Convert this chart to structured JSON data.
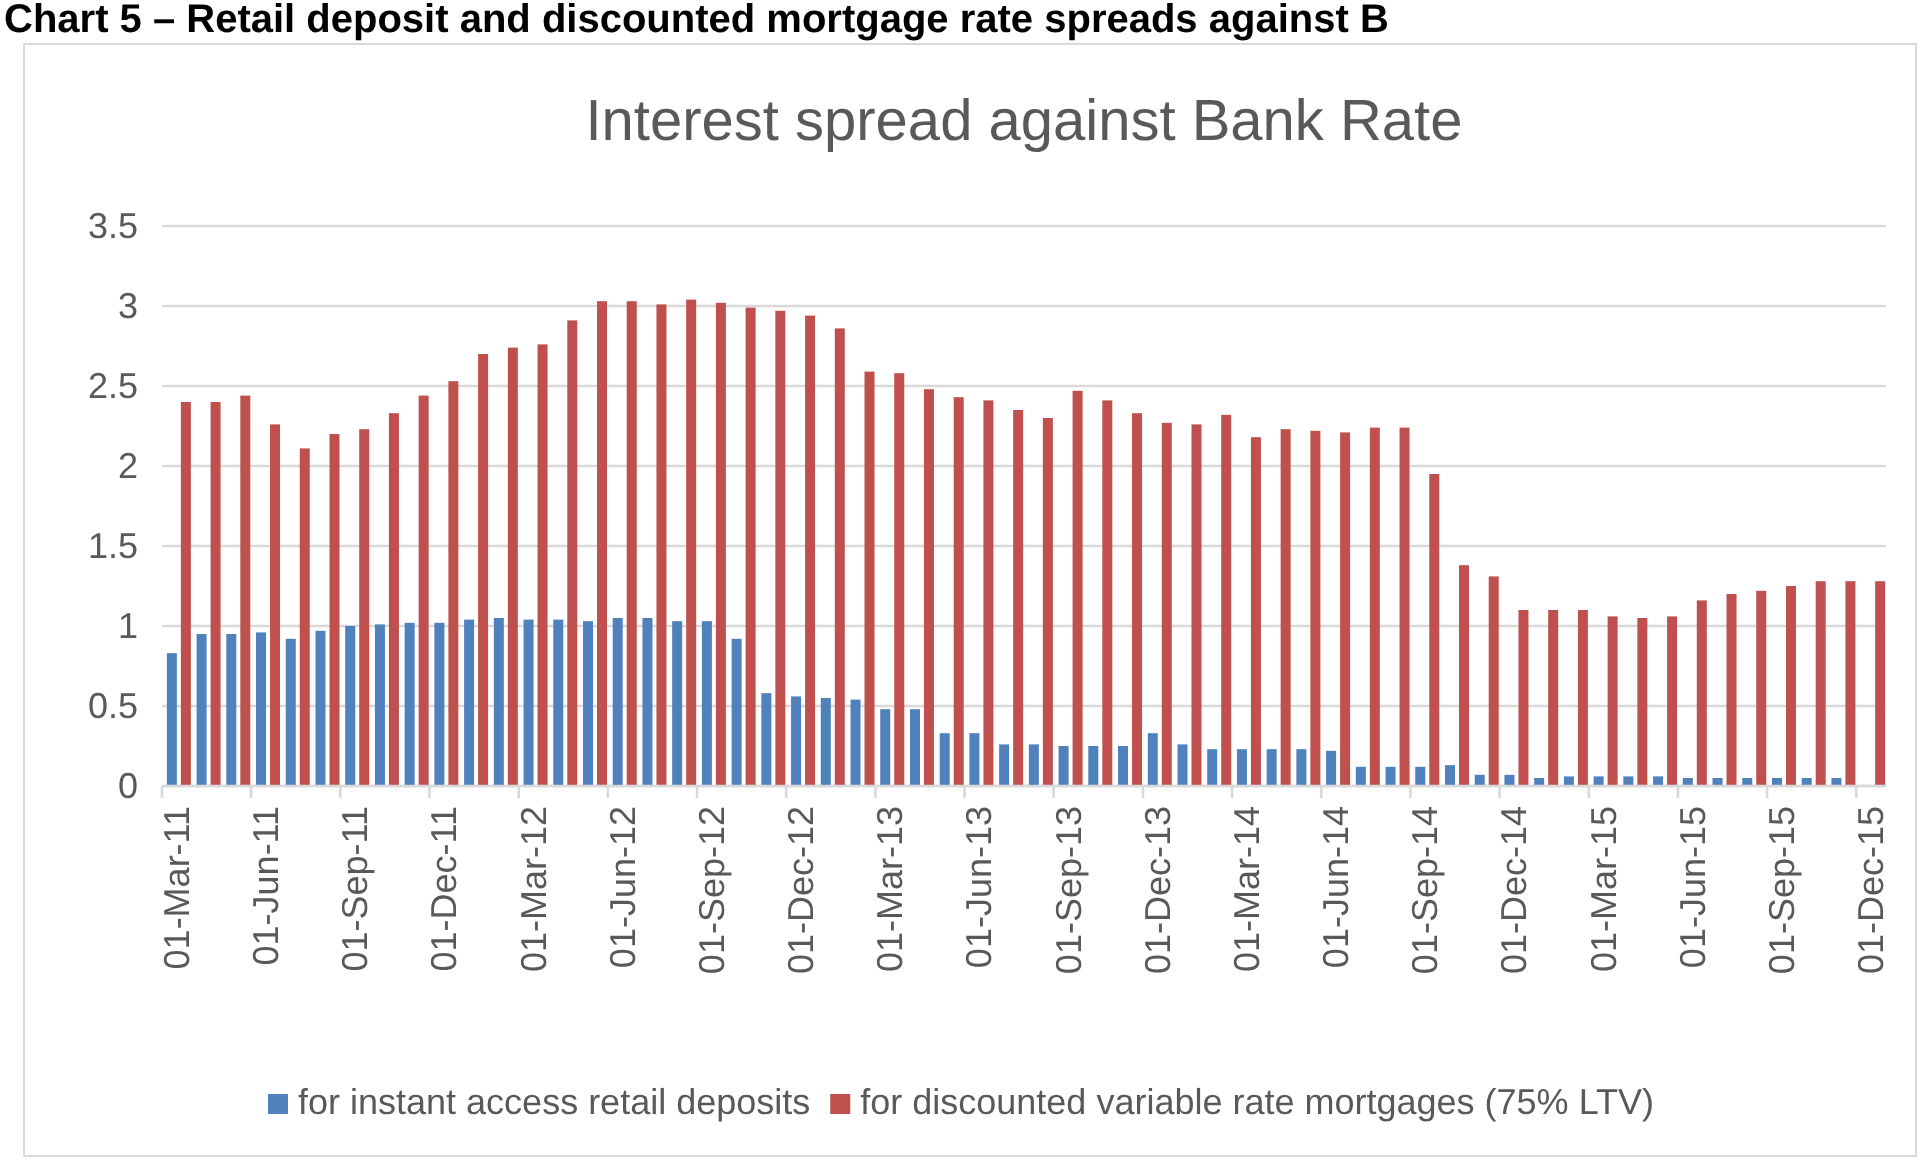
{
  "chart_data": {
    "type": "bar",
    "title": "Interest spread against Bank Rate",
    "annotations": [
      "Chart 5 – Retail deposit and discounted mortgage rate spreads against B"
    ],
    "categories": [
      "01-Mar-11",
      null,
      null,
      "01-Jun-11",
      null,
      null,
      "01-Sep-11",
      null,
      null,
      "01-Dec-11",
      null,
      null,
      "01-Mar-12",
      null,
      null,
      "01-Jun-12",
      null,
      null,
      "01-Sep-12",
      null,
      null,
      "01-Dec-12",
      null,
      null,
      "01-Mar-13",
      null,
      null,
      "01-Jun-13",
      null,
      null,
      "01-Sep-13",
      null,
      null,
      "01-Dec-13",
      null,
      null,
      "01-Mar-14",
      null,
      null,
      "01-Jun-14",
      null,
      null,
      "01-Sep-14",
      null,
      null,
      "01-Dec-14",
      null,
      null,
      "01-Mar-15",
      null,
      null,
      "01-Jun-15",
      null,
      null,
      "01-Sep-15",
      null,
      null,
      "01-Dec-15"
    ],
    "series": [
      {
        "name": "for instant access retail deposits",
        "color": "#4f81bd",
        "values": [
          0.83,
          0.95,
          0.95,
          0.96,
          0.92,
          0.97,
          1.0,
          1.01,
          1.02,
          1.02,
          1.04,
          1.05,
          1.04,
          1.04,
          1.03,
          1.05,
          1.05,
          1.03,
          1.03,
          0.92,
          0.58,
          0.56,
          0.55,
          0.54,
          0.48,
          0.48,
          0.33,
          0.33,
          0.26,
          0.26,
          0.25,
          0.25,
          0.25,
          0.33,
          0.26,
          0.23,
          0.23,
          0.23,
          0.23,
          0.22,
          0.12,
          0.12,
          0.12,
          0.13,
          0.07,
          0.07,
          0.05,
          0.06,
          0.06,
          0.06,
          0.06,
          0.05,
          0.05,
          0.05,
          0.05,
          0.05,
          0.05,
          null
        ]
      },
      {
        "name": "for discounted variable rate mortgages (75% LTV)",
        "color": "#c0504d",
        "values": [
          2.4,
          2.4,
          2.44,
          2.26,
          2.11,
          2.2,
          2.23,
          2.33,
          2.44,
          2.53,
          2.7,
          2.74,
          2.76,
          2.91,
          3.03,
          3.03,
          3.01,
          3.04,
          3.02,
          2.99,
          2.97,
          2.94,
          2.86,
          2.59,
          2.58,
          2.48,
          2.43,
          2.41,
          2.35,
          2.3,
          2.47,
          2.41,
          2.33,
          2.27,
          2.26,
          2.32,
          2.18,
          2.23,
          2.22,
          2.21,
          2.24,
          2.24,
          1.95,
          1.38,
          1.31,
          1.1,
          1.1,
          1.1,
          1.06,
          1.05,
          1.06,
          1.16,
          1.2,
          1.22,
          1.25,
          1.28,
          1.28,
          1.28
        ]
      }
    ],
    "ylim": [
      0,
      3.5
    ],
    "yticks": [
      0,
      0.5,
      1,
      1.5,
      2,
      2.5,
      3,
      3.5
    ],
    "grid": "y",
    "legend": "bottom"
  }
}
